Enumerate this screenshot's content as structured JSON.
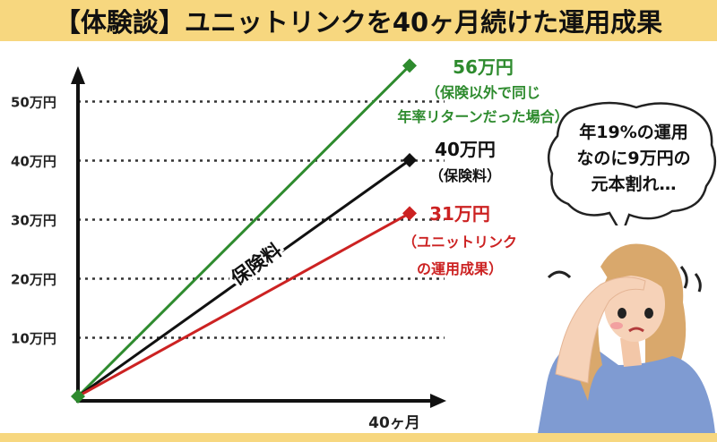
{
  "title": "【体験談】ユニットリンクを40ヶ月続けた運用成果",
  "chart_data": {
    "type": "line",
    "x": [
      0,
      40
    ],
    "xlabel": "40ヶ月",
    "yticks": [
      "10万円",
      "20万円",
      "30万円",
      "40万円",
      "50万円"
    ],
    "ylim": [
      0,
      50
    ],
    "grid": "dotted horizontal",
    "series": [
      {
        "name": "保険以外で同じ年率リターンだった場合",
        "values": [
          0,
          56
        ],
        "color": "#2e8b2e",
        "label_lines": [
          "56万円",
          "（保険以外で同じ",
          "年率リターンだった場合）"
        ]
      },
      {
        "name": "保険料",
        "values": [
          0,
          40
        ],
        "color": "#111111",
        "label_lines": [
          "40万円",
          "（保険料）"
        ]
      },
      {
        "name": "ユニットリンクの運用成果",
        "values": [
          0,
          31
        ],
        "color": "#cc2222",
        "label_lines": [
          "31万円",
          "（ユニットリンク",
          "の運用成果）"
        ]
      }
    ],
    "line_label": "保険料"
  },
  "bubble": {
    "lines": [
      "年19%の運用",
      "なのに9万円の",
      "元本割れ…"
    ]
  },
  "colors": {
    "banner": "#f7d77f",
    "green": "#2e8b2e",
    "black": "#111111",
    "red": "#cc2222",
    "sweater": "#7f9bd2",
    "hair": "#d9a86c"
  },
  "icons": [
    "worried-woman-illustration",
    "speech-bubble",
    "diamond-marker"
  ]
}
